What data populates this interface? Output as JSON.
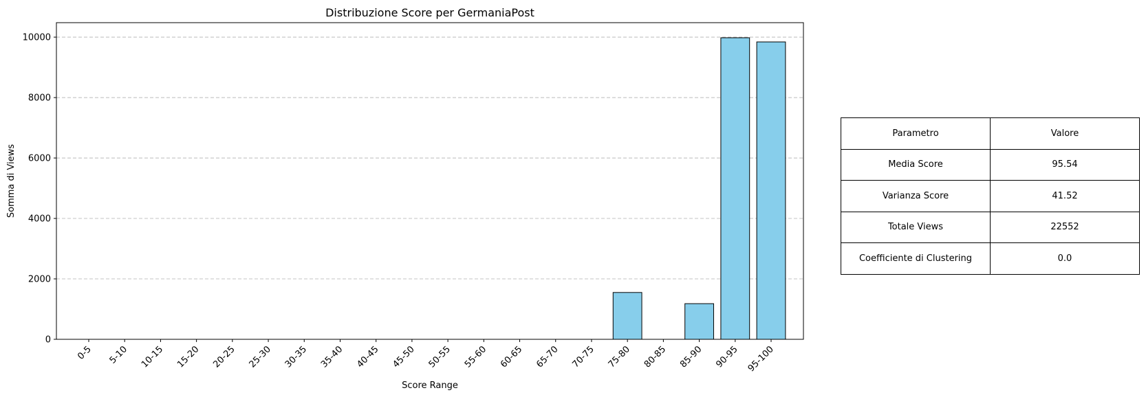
{
  "chart_data": {
    "type": "bar",
    "title": "Distribuzione Score per GermaniaPost",
    "xlabel": "Score Range",
    "ylabel": "Somma di Views",
    "categories": [
      "0-5",
      "5-10",
      "10-15",
      "15-20",
      "20-25",
      "25-30",
      "30-35",
      "35-40",
      "40-45",
      "45-50",
      "50-55",
      "55-60",
      "60-65",
      "65-70",
      "70-75",
      "75-80",
      "80-85",
      "85-90",
      "90-95",
      "95-100"
    ],
    "values": [
      0,
      0,
      0,
      0,
      0,
      0,
      0,
      0,
      0,
      0,
      0,
      0,
      0,
      0,
      0,
      1550,
      0,
      1180,
      9980,
      9842
    ],
    "ylim": [
      0,
      10479
    ],
    "yticks": [
      0,
      2000,
      4000,
      6000,
      8000,
      10000
    ],
    "grid": "y-dashed",
    "bar_color": "#87CEEB",
    "edge_color": "#000000"
  },
  "table": {
    "header": [
      "Parametro",
      "Valore"
    ],
    "rows": [
      [
        "Media Score",
        "95.54"
      ],
      [
        "Varianza Score",
        "41.52"
      ],
      [
        "Totale Views",
        "22552"
      ],
      [
        "Coefficiente di Clustering",
        "0.0"
      ]
    ]
  }
}
